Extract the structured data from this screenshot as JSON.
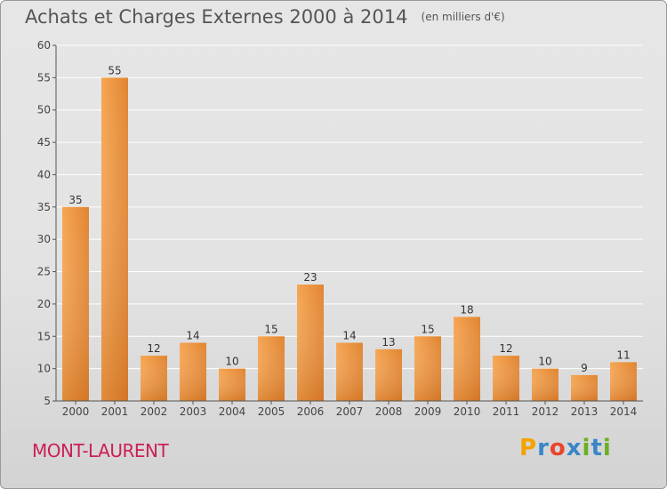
{
  "header": {
    "title": "Achats et Charges Externes 2000 à 2014",
    "subtitle": "(en milliers d'€)"
  },
  "footer": {
    "commune": "MONT-LAURENT",
    "logo_text": "Proxiti",
    "logo_colors": [
      "#f5a300",
      "#3a86c8",
      "#e8452c",
      "#3a86c8",
      "#6ab023",
      "#3a86c8",
      "#6ab023"
    ]
  },
  "colors": {
    "bar_top": "#f6a552",
    "bar_bottom": "#d9782a",
    "commune": "#cc1f55"
  },
  "chart_data": {
    "type": "bar",
    "title": "Achats et Charges Externes 2000 à 2014",
    "subtitle": "(en milliers d'€)",
    "categories": [
      "2000",
      "2001",
      "2002",
      "2003",
      "2004",
      "2005",
      "2006",
      "2007",
      "2008",
      "2009",
      "2010",
      "2011",
      "2012",
      "2013",
      "2014"
    ],
    "values": [
      35,
      55,
      12,
      14,
      10,
      15,
      23,
      14,
      13,
      15,
      18,
      12,
      10,
      9,
      11
    ],
    "ylim": [
      5,
      60
    ],
    "yticks": [
      5,
      10,
      15,
      20,
      25,
      30,
      35,
      40,
      45,
      50,
      55,
      60
    ],
    "grid": true,
    "data_labels": true
  }
}
